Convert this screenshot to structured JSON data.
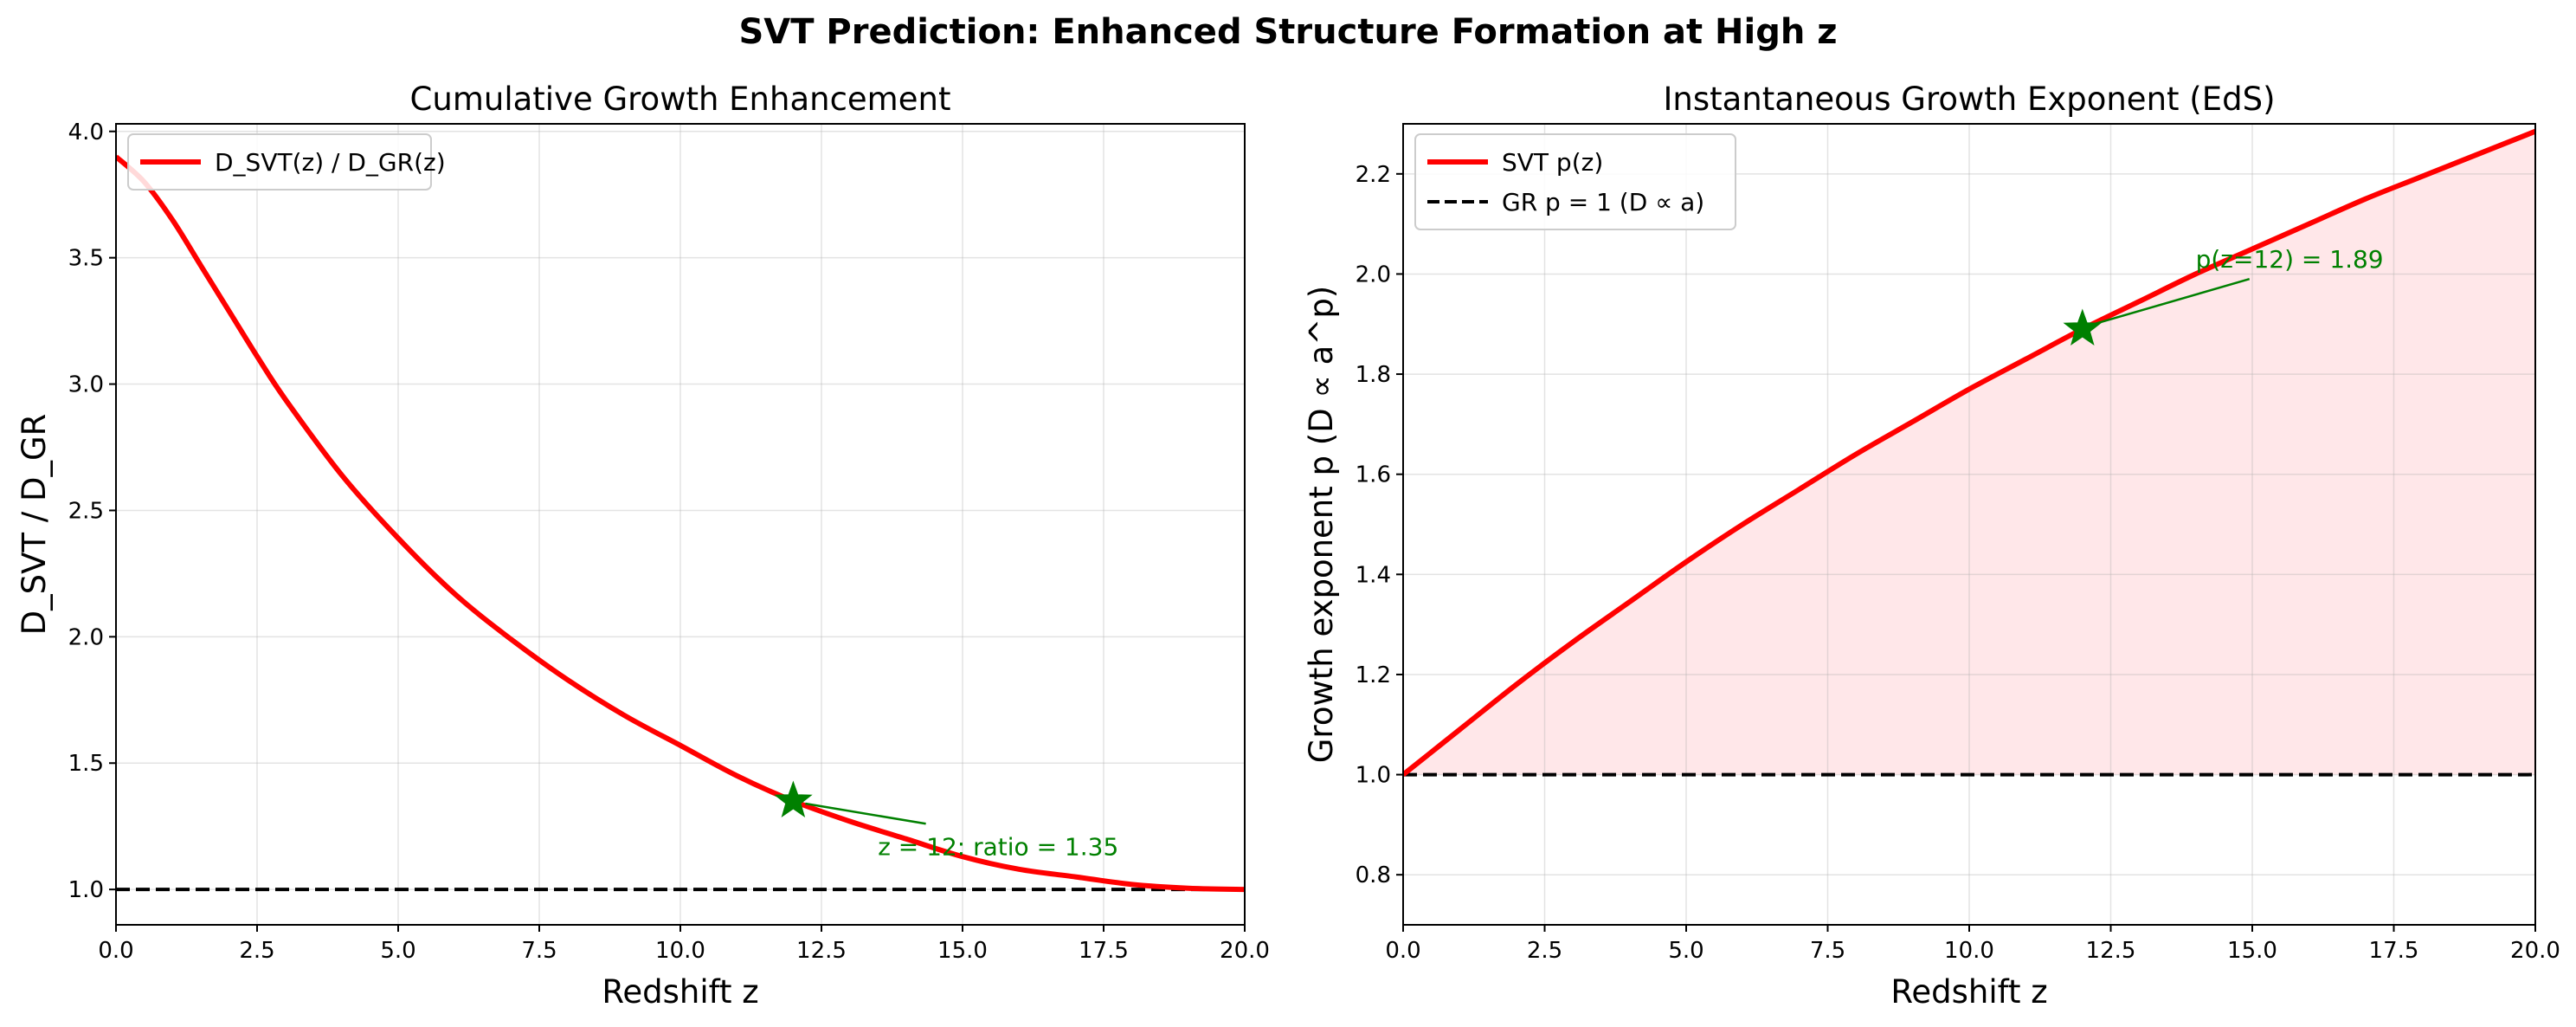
{
  "figure": {
    "title": "SVT Prediction: Enhanced Structure Formation at High z"
  },
  "chart_data": [
    {
      "type": "line",
      "title": "Cumulative Growth Enhancement",
      "xlabel": "Redshift  z",
      "ylabel": "D_SVT / D_GR",
      "xlim": [
        0,
        20
      ],
      "ylim": [
        0.86,
        4.03
      ],
      "xticks": [
        "0.0",
        "2.5",
        "5.0",
        "7.5",
        "10.0",
        "12.5",
        "15.0",
        "17.5",
        "20.0"
      ],
      "yticks": [
        "1.0",
        "1.5",
        "2.0",
        "2.5",
        "3.0",
        "3.5",
        "4.0"
      ],
      "grid": true,
      "legend_position": "upper-left",
      "series": [
        {
          "name": "D_SVT(z) / D_GR(z)",
          "color": "#ff0000",
          "style": "solid",
          "x": [
            0,
            0.5,
            1,
            1.5,
            2,
            2.5,
            3,
            4,
            5,
            6,
            7,
            8,
            9,
            10,
            11,
            12,
            13,
            14,
            15,
            16,
            17,
            18,
            19,
            20
          ],
          "y": [
            3.9,
            3.8,
            3.65,
            3.47,
            3.29,
            3.11,
            2.94,
            2.64,
            2.39,
            2.17,
            1.99,
            1.83,
            1.69,
            1.57,
            1.45,
            1.35,
            1.27,
            1.2,
            1.13,
            1.08,
            1.05,
            1.02,
            1.005,
            1.0
          ]
        },
        {
          "name": "",
          "color": "#000000",
          "style": "dashed",
          "x": [
            0,
            20
          ],
          "y": [
            1.0,
            1.0
          ]
        }
      ],
      "marker": {
        "x": 12,
        "y": 1.35,
        "shape": "star",
        "color": "#008000"
      },
      "annotation": {
        "text": "z = 12:  ratio = 1.35",
        "x": 13.5,
        "y": 1.17
      }
    },
    {
      "type": "area",
      "title": "Instantaneous Growth Exponent (EdS)",
      "xlabel": "Redshift  z",
      "ylabel": "Growth exponent  p  (D ∝ a^p)",
      "xlim": [
        0,
        20
      ],
      "ylim": [
        0.7,
        2.3
      ],
      "xticks": [
        "0.0",
        "2.5",
        "5.0",
        "7.5",
        "10.0",
        "12.5",
        "15.0",
        "17.5",
        "20.0"
      ],
      "yticks": [
        "0.8",
        "1.0",
        "1.2",
        "1.4",
        "1.6",
        "1.8",
        "2.0",
        "2.2"
      ],
      "grid": true,
      "legend_position": "upper-left",
      "fill_color": "#ffe7e9",
      "series": [
        {
          "name": "SVT  p(z)",
          "color": "#ff0000",
          "style": "solid",
          "x": [
            0,
            1,
            2,
            3,
            4,
            5,
            6,
            7,
            8,
            9,
            10,
            11,
            12,
            13,
            14,
            15,
            16,
            17,
            18,
            19,
            20
          ],
          "y": [
            1.0,
            1.09,
            1.18,
            1.265,
            1.345,
            1.425,
            1.5,
            1.57,
            1.64,
            1.705,
            1.77,
            1.83,
            1.89,
            1.945,
            2.0,
            2.05,
            2.1,
            2.15,
            2.195,
            2.24,
            2.285
          ]
        },
        {
          "name": "GR  p = 1  (D ∝ a)",
          "color": "#000000",
          "style": "dashed",
          "x": [
            0,
            20
          ],
          "y": [
            1.0,
            1.0
          ]
        }
      ],
      "marker": {
        "x": 12,
        "y": 1.89,
        "shape": "star",
        "color": "#008000"
      },
      "annotation": {
        "text": "p(z=12) = 1.89",
        "x": 14.0,
        "y": 2.03
      }
    }
  ]
}
